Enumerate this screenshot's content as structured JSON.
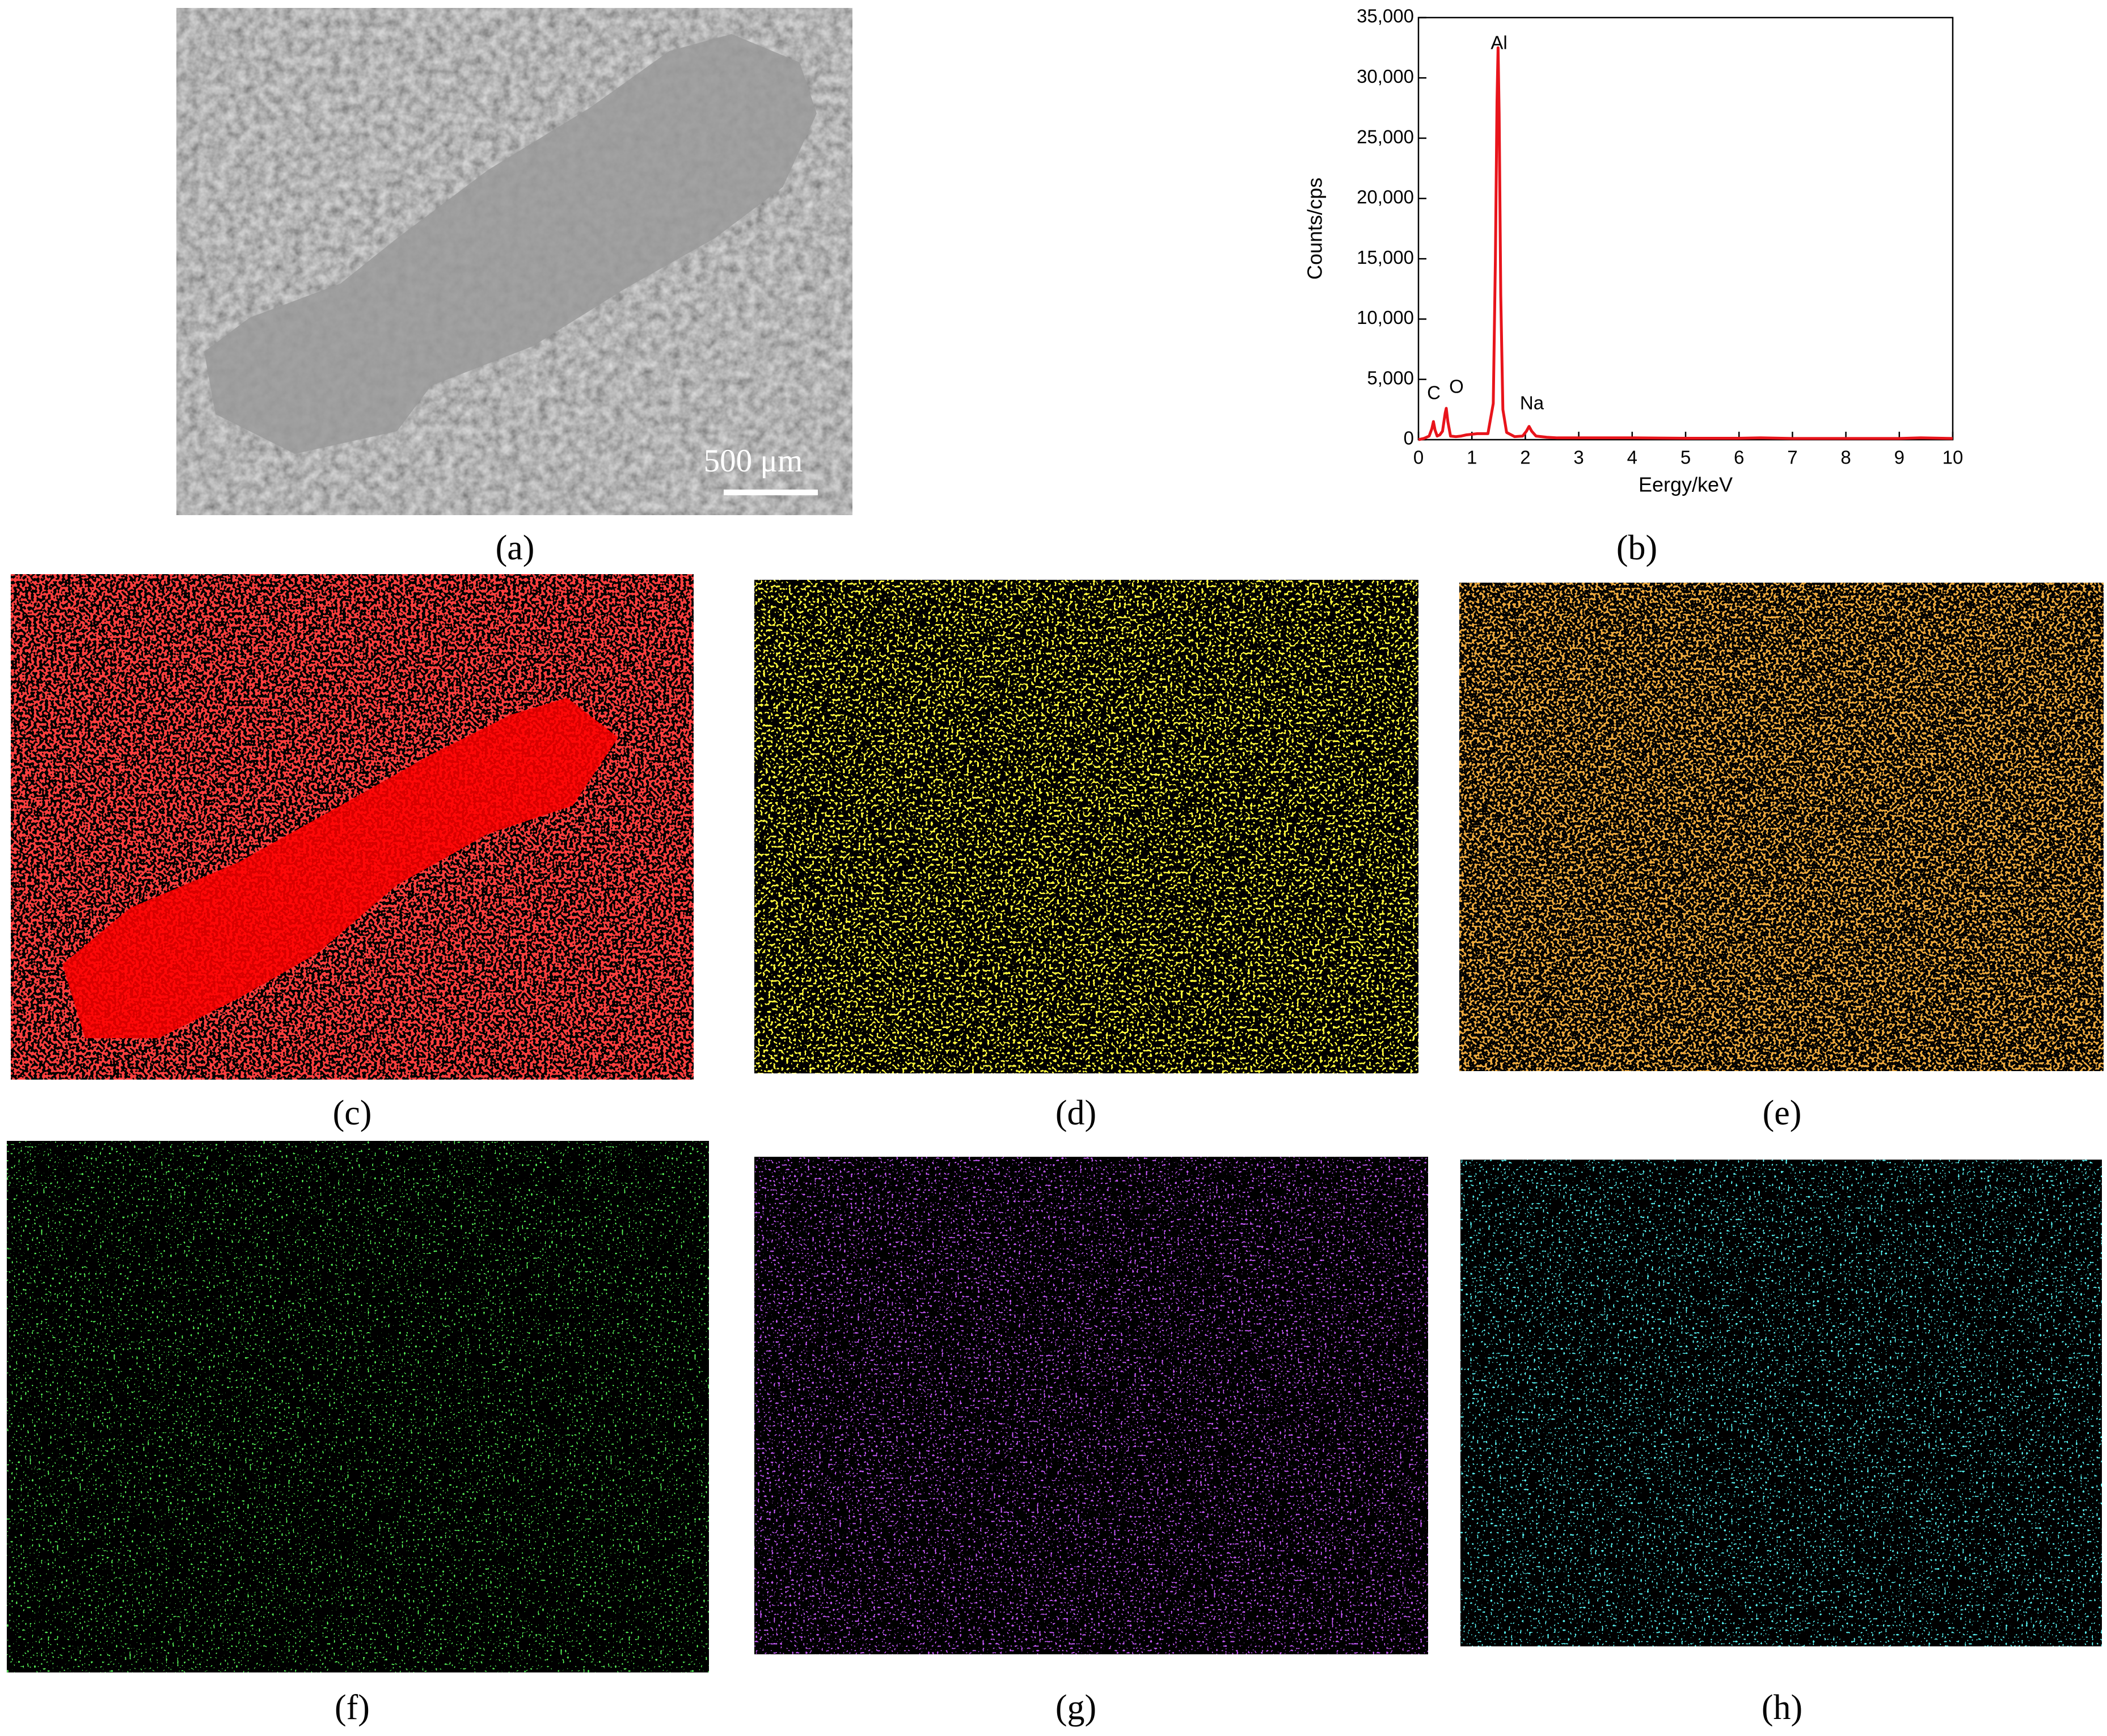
{
  "chart_data": {
    "type": "line",
    "x_label": "Eergy/keV",
    "y_label": "Counts/cps",
    "x": [
      0,
      0.1,
      0.2,
      0.25,
      0.28,
      0.31,
      0.35,
      0.4,
      0.45,
      0.5,
      0.52,
      0.55,
      0.6,
      0.7,
      0.8,
      0.9,
      1.0,
      1.1,
      1.2,
      1.3,
      1.4,
      1.44,
      1.47,
      1.49,
      1.51,
      1.54,
      1.58,
      1.65,
      1.8,
      1.95,
      2.02,
      2.07,
      2.12,
      2.2,
      2.4,
      2.6,
      3,
      4,
      5,
      6,
      6.4,
      7,
      8,
      9,
      9.4,
      10
    ],
    "values": [
      0,
      100,
      300,
      900,
      1500,
      800,
      300,
      400,
      700,
      2200,
      2600,
      1500,
      300,
      250,
      300,
      400,
      450,
      500,
      500,
      500,
      3000,
      15000,
      28000,
      32500,
      27000,
      12000,
      2500,
      600,
      250,
      300,
      700,
      1100,
      700,
      300,
      200,
      150,
      150,
      150,
      120,
      120,
      150,
      100,
      100,
      100,
      150,
      100
    ],
    "color": "#e8141b",
    "xlim": [
      0,
      10
    ],
    "xticks": [
      0,
      1,
      2,
      3,
      4,
      5,
      6,
      7,
      8,
      9,
      10
    ],
    "ylim": [
      0,
      35000
    ],
    "yticks": [
      0,
      {
        "value": 5000,
        "label": "5,000"
      },
      {
        "value": 10000,
        "label": "10,000"
      },
      {
        "value": 15000,
        "label": "15,000"
      },
      {
        "value": 20000,
        "label": "20,000"
      },
      {
        "value": 25000,
        "label": "25,000"
      },
      {
        "value": 30000,
        "label": "30,000"
      },
      {
        "value": 35000,
        "label": "35,000"
      }
    ],
    "annotations": [
      "C",
      "O",
      "Al",
      "Na"
    ]
  },
  "panels": {
    "a": "(a)",
    "b": "(b)",
    "c": "(c)",
    "d": "(d)",
    "e": "(e)",
    "f": "(f)",
    "g": "(g)",
    "h": "(h)"
  },
  "scale_bar": "500 μm"
}
